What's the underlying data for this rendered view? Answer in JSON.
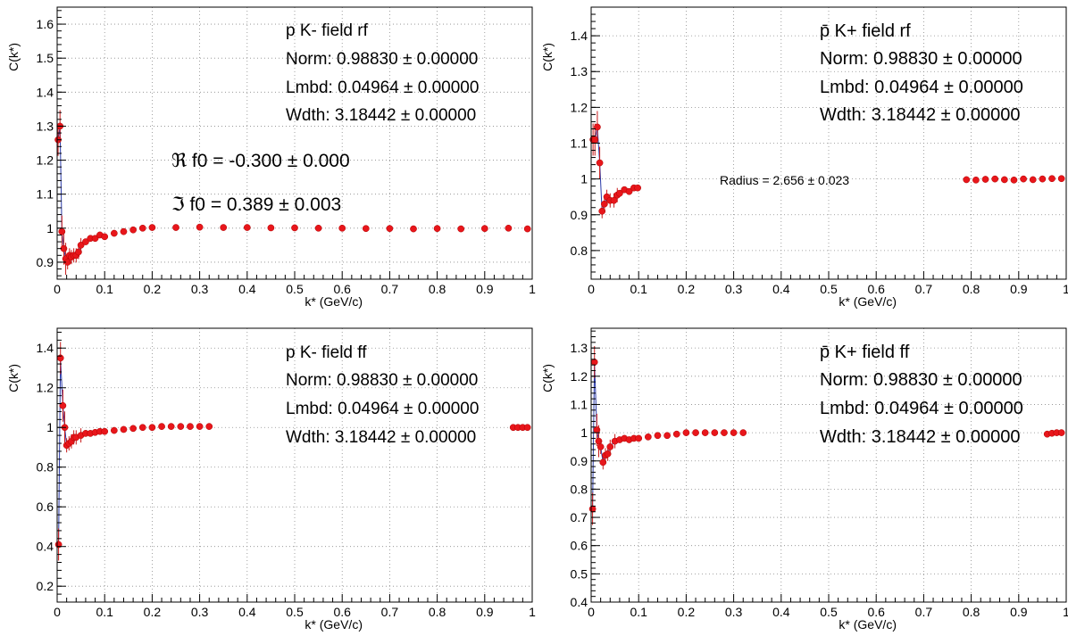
{
  "colors": {
    "marker": "#e8161b",
    "marker_edge": "#b00000",
    "error_bar": "#c81a1a",
    "fit_line": "#2a3aa8",
    "grid": "#8a8a8a",
    "frame": "#000000"
  },
  "chart_data": [
    {
      "type": "scatter",
      "title": "",
      "xlabel": "k* (GeV/c)",
      "ylabel": "C(k*)",
      "xlim": [
        0,
        1
      ],
      "ylim": [
        0.85,
        1.65
      ],
      "xticks": [
        "0",
        "0.1",
        "0.2",
        "0.3",
        "0.4",
        "0.5",
        "0.6",
        "0.7",
        "0.8",
        "0.9",
        "1"
      ],
      "yticks": [
        "0.9",
        "1",
        "1.1",
        "1.2",
        "1.3",
        "1.4",
        "1.5",
        "1.6"
      ],
      "ytick_values": [
        0.9,
        1.0,
        1.1,
        1.2,
        1.3,
        1.4,
        1.5,
        1.6
      ],
      "grid": true,
      "annotations": [
        "p K- field rf",
        "Norm: 0.98830 ± 0.00000",
        "Lmbd: 0.04964 ± 0.00000",
        "Wdth: 3.18442 ± 0.00000",
        "ℜ f0 = -0.300 ± 0.000",
        "ℑ f0 = 0.389 ± 0.003"
      ],
      "series": [
        {
          "x": [
            0.002,
            0.006,
            0.01,
            0.014,
            0.018,
            0.022,
            0.026,
            0.03,
            0.035,
            0.04,
            0.045,
            0.05,
            0.06,
            0.07,
            0.08,
            0.09,
            0.1,
            0.12,
            0.14,
            0.16,
            0.18,
            0.2,
            0.25,
            0.3,
            0.35,
            0.4,
            0.45,
            0.5,
            0.55,
            0.6,
            0.65,
            0.7,
            0.75,
            0.8,
            0.85,
            0.9,
            0.95,
            0.99
          ],
          "y": [
            1.26,
            1.3,
            0.99,
            0.94,
            0.91,
            0.9,
            0.92,
            0.915,
            0.92,
            0.92,
            0.93,
            0.95,
            0.96,
            0.97,
            0.97,
            0.98,
            0.975,
            0.985,
            0.99,
            0.995,
            1.0,
            1.002,
            1.002,
            1.003,
            1.002,
            1.002,
            1.001,
            1.001,
            1.0,
            1.0,
            0.999,
            0.999,
            0.998,
            0.999,
            0.998,
            0.999,
            1.0,
            0.998
          ]
        }
      ]
    },
    {
      "type": "scatter",
      "title": "",
      "xlabel": "k* (GeV/c)",
      "ylabel": "C(k*)",
      "xlim": [
        0,
        1
      ],
      "ylim": [
        0.72,
        1.48
      ],
      "xticks": [
        "0",
        "0.1",
        "0.2",
        "0.3",
        "0.4",
        "0.5",
        "0.6",
        "0.7",
        "0.8",
        "0.9",
        "1"
      ],
      "yticks": [
        "0.8",
        "0.9",
        "1",
        "1.1",
        "1.2",
        "1.3",
        "1.4"
      ],
      "ytick_values": [
        0.8,
        0.9,
        1.0,
        1.1,
        1.2,
        1.3,
        1.4
      ],
      "grid": true,
      "annotations": [
        "p̄ K+ field rf",
        "Norm: 0.98830 ± 0.00000",
        "Lmbd: 0.04964 ± 0.00000",
        "Wdth: 3.18442 ± 0.00000",
        "Radius = 2.656 ± 0.023"
      ],
      "series": [
        {
          "x": [
            0.004,
            0.008,
            0.013,
            0.018,
            0.023,
            0.028,
            0.033,
            0.04,
            0.048,
            0.055,
            0.06,
            0.07,
            0.08,
            0.09,
            0.098,
            0.79,
            0.81,
            0.83,
            0.85,
            0.87,
            0.89,
            0.91,
            0.93,
            0.95,
            0.97,
            0.99
          ],
          "y": [
            1.11,
            1.11,
            1.145,
            1.045,
            0.91,
            0.93,
            0.95,
            0.94,
            0.94,
            0.955,
            0.96,
            0.97,
            0.965,
            0.975,
            0.975,
            0.998,
            0.997,
            0.999,
            1.0,
            0.998,
            0.997,
            1.0,
            0.998,
            1.0,
            1.001,
            1.001
          ]
        }
      ]
    },
    {
      "type": "scatter",
      "title": "",
      "xlabel": "k* (GeV/c)",
      "ylabel": "C(k*)",
      "xlim": [
        0,
        1
      ],
      "ylim": [
        0.12,
        1.5
      ],
      "xticks": [
        "0",
        "0.1",
        "0.2",
        "0.3",
        "0.4",
        "0.5",
        "0.6",
        "0.7",
        "0.8",
        "0.9",
        "1"
      ],
      "yticks": [
        "0.2",
        "0.4",
        "0.6",
        "0.8",
        "1",
        "1.2",
        "1.4"
      ],
      "ytick_values": [
        0.2,
        0.4,
        0.6,
        0.8,
        1.0,
        1.2,
        1.4
      ],
      "grid": true,
      "annotations": [
        "p K- field ff",
        "Norm: 0.98830 ± 0.00000",
        "Lmbd: 0.04964 ± 0.00000",
        "Wdth: 3.18442 ± 0.00000"
      ],
      "series": [
        {
          "x": [
            0.003,
            0.007,
            0.012,
            0.016,
            0.02,
            0.025,
            0.03,
            0.035,
            0.04,
            0.05,
            0.06,
            0.07,
            0.08,
            0.09,
            0.1,
            0.12,
            0.14,
            0.16,
            0.18,
            0.2,
            0.22,
            0.24,
            0.26,
            0.28,
            0.3,
            0.32,
            0.96,
            0.97,
            0.98,
            0.99
          ],
          "y": [
            0.41,
            1.35,
            1.11,
            1.0,
            0.91,
            0.92,
            0.93,
            0.95,
            0.95,
            0.96,
            0.97,
            0.97,
            0.975,
            0.98,
            0.98,
            0.985,
            0.99,
            0.995,
            1.0,
            1.0,
            1.005,
            1.005,
            1.005,
            1.005,
            1.005,
            1.005,
            1.0,
            1.0,
            1.0,
            1.0
          ]
        }
      ]
    },
    {
      "type": "scatter",
      "title": "",
      "xlabel": "k* (GeV/c)",
      "ylabel": "C(k*)",
      "xlim": [
        0,
        1
      ],
      "ylim": [
        0.4,
        1.37
      ],
      "xticks": [
        "0",
        "0.1",
        "0.2",
        "0.3",
        "0.4",
        "0.5",
        "0.6",
        "0.7",
        "0.8",
        "0.9",
        "1"
      ],
      "yticks": [
        "0.4",
        "0.5",
        "0.6",
        "0.7",
        "0.8",
        "0.9",
        "1",
        "1.1",
        "1.2",
        "1.3"
      ],
      "ytick_values": [
        0.4,
        0.5,
        0.6,
        0.7,
        0.8,
        0.9,
        1.0,
        1.1,
        1.2,
        1.3
      ],
      "grid": true,
      "annotations": [
        "p̄ K+ field ff",
        "Norm: 0.98830 ± 0.00000",
        "Lmbd: 0.04964 ± 0.00000",
        "Wdth: 3.18442 ± 0.00000"
      ],
      "series": [
        {
          "x": [
            0.003,
            0.007,
            0.012,
            0.016,
            0.02,
            0.025,
            0.03,
            0.035,
            0.04,
            0.05,
            0.06,
            0.07,
            0.08,
            0.09,
            0.1,
            0.12,
            0.14,
            0.16,
            0.18,
            0.2,
            0.22,
            0.24,
            0.26,
            0.28,
            0.3,
            0.32,
            0.96,
            0.97,
            0.98,
            0.99
          ],
          "y": [
            0.73,
            1.25,
            1.01,
            0.97,
            0.95,
            0.895,
            0.92,
            0.925,
            0.95,
            0.97,
            0.975,
            0.98,
            0.975,
            0.98,
            0.98,
            0.985,
            0.99,
            0.99,
            0.995,
            1.0,
            1.0,
            1.0,
            1.0,
            1.0,
            1.0,
            1.0,
            0.995,
            0.998,
            1.0,
            1.0
          ]
        }
      ]
    }
  ]
}
